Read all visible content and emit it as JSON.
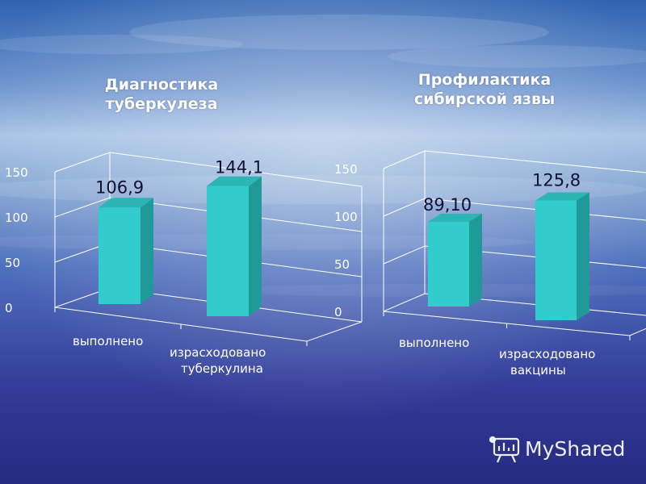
{
  "chart_data": [
    {
      "type": "bar",
      "title": "Диагностика туберкулеза",
      "title_lines": [
        "Диагностика",
        "туберкулеза"
      ],
      "categories": [
        [
          "выполнено"
        ],
        [
          "израсходовано",
          "туберкулина"
        ]
      ],
      "values": [
        106.9,
        144.1
      ],
      "value_labels": [
        "106,9",
        "144,1"
      ],
      "yticks": [
        0,
        50,
        100,
        150
      ],
      "ylim": [
        0,
        150
      ],
      "bar_color": "#33cccc",
      "three_d": true,
      "legend": "none"
    },
    {
      "type": "bar",
      "title": "Профилактика сибирской язвы",
      "title_lines": [
        "Профилактика",
        "сибирской язвы"
      ],
      "categories": [
        [
          "выполнено"
        ],
        [
          "израсходовано",
          "вакцины"
        ]
      ],
      "values": [
        89.1,
        125.8
      ],
      "value_labels": [
        "89,10",
        "125,8"
      ],
      "yticks": [
        0,
        50,
        100,
        150
      ],
      "ylim": [
        0,
        150
      ],
      "bar_color": "#33cccc",
      "three_d": true,
      "legend": "none"
    }
  ],
  "watermark": {
    "text": "MyShared",
    "icon": "presentation-board-icon"
  },
  "colors": {
    "background_top": "#8fb0d8",
    "background_bottom": "#2a2f86",
    "bar_front": "#33cccc",
    "bar_side": "#1f9a98",
    "bar_top": "#2bb5b3"
  }
}
